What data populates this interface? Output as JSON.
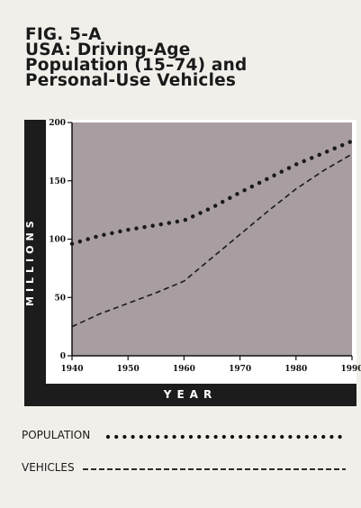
{
  "figure": {
    "title_lines": [
      "FIG. 5-A",
      "USA: Driving-Age",
      "Population (15–74) and",
      "Personal-Use Vehicles"
    ]
  },
  "chart_data": {
    "type": "line",
    "ylabel": "MILLIONS",
    "xlabel": "YEAR",
    "x_ticks": [
      1940,
      1950,
      1960,
      1970,
      1980,
      1990
    ],
    "y_ticks": [
      0,
      50,
      100,
      150,
      200
    ],
    "xlim": [
      1940,
      1990
    ],
    "ylim": [
      0,
      200
    ],
    "series": [
      {
        "name": "POPULATION",
        "style": "dotted",
        "x": [
          1940,
          1945,
          1950,
          1955,
          1960,
          1965,
          1970,
          1975,
          1980,
          1985,
          1990
        ],
        "values": [
          96,
          103,
          108,
          112,
          116,
          127,
          140,
          152,
          164,
          174,
          184
        ]
      },
      {
        "name": "VEHICLES",
        "style": "dashed",
        "x": [
          1940,
          1945,
          1950,
          1955,
          1960,
          1965,
          1970,
          1975,
          1980,
          1985,
          1990
        ],
        "values": [
          25,
          36,
          45,
          54,
          64,
          84,
          104,
          124,
          143,
          159,
          173
        ]
      }
    ],
    "plot_background": "#a89da1",
    "grid": false
  },
  "legend": {
    "population_label": "POPULATION",
    "vehicles_label": "VEHICLES"
  },
  "colors": {
    "band": "#1c1c1c",
    "plot_fill": "#a89da1",
    "line": "#1a1a1a"
  }
}
